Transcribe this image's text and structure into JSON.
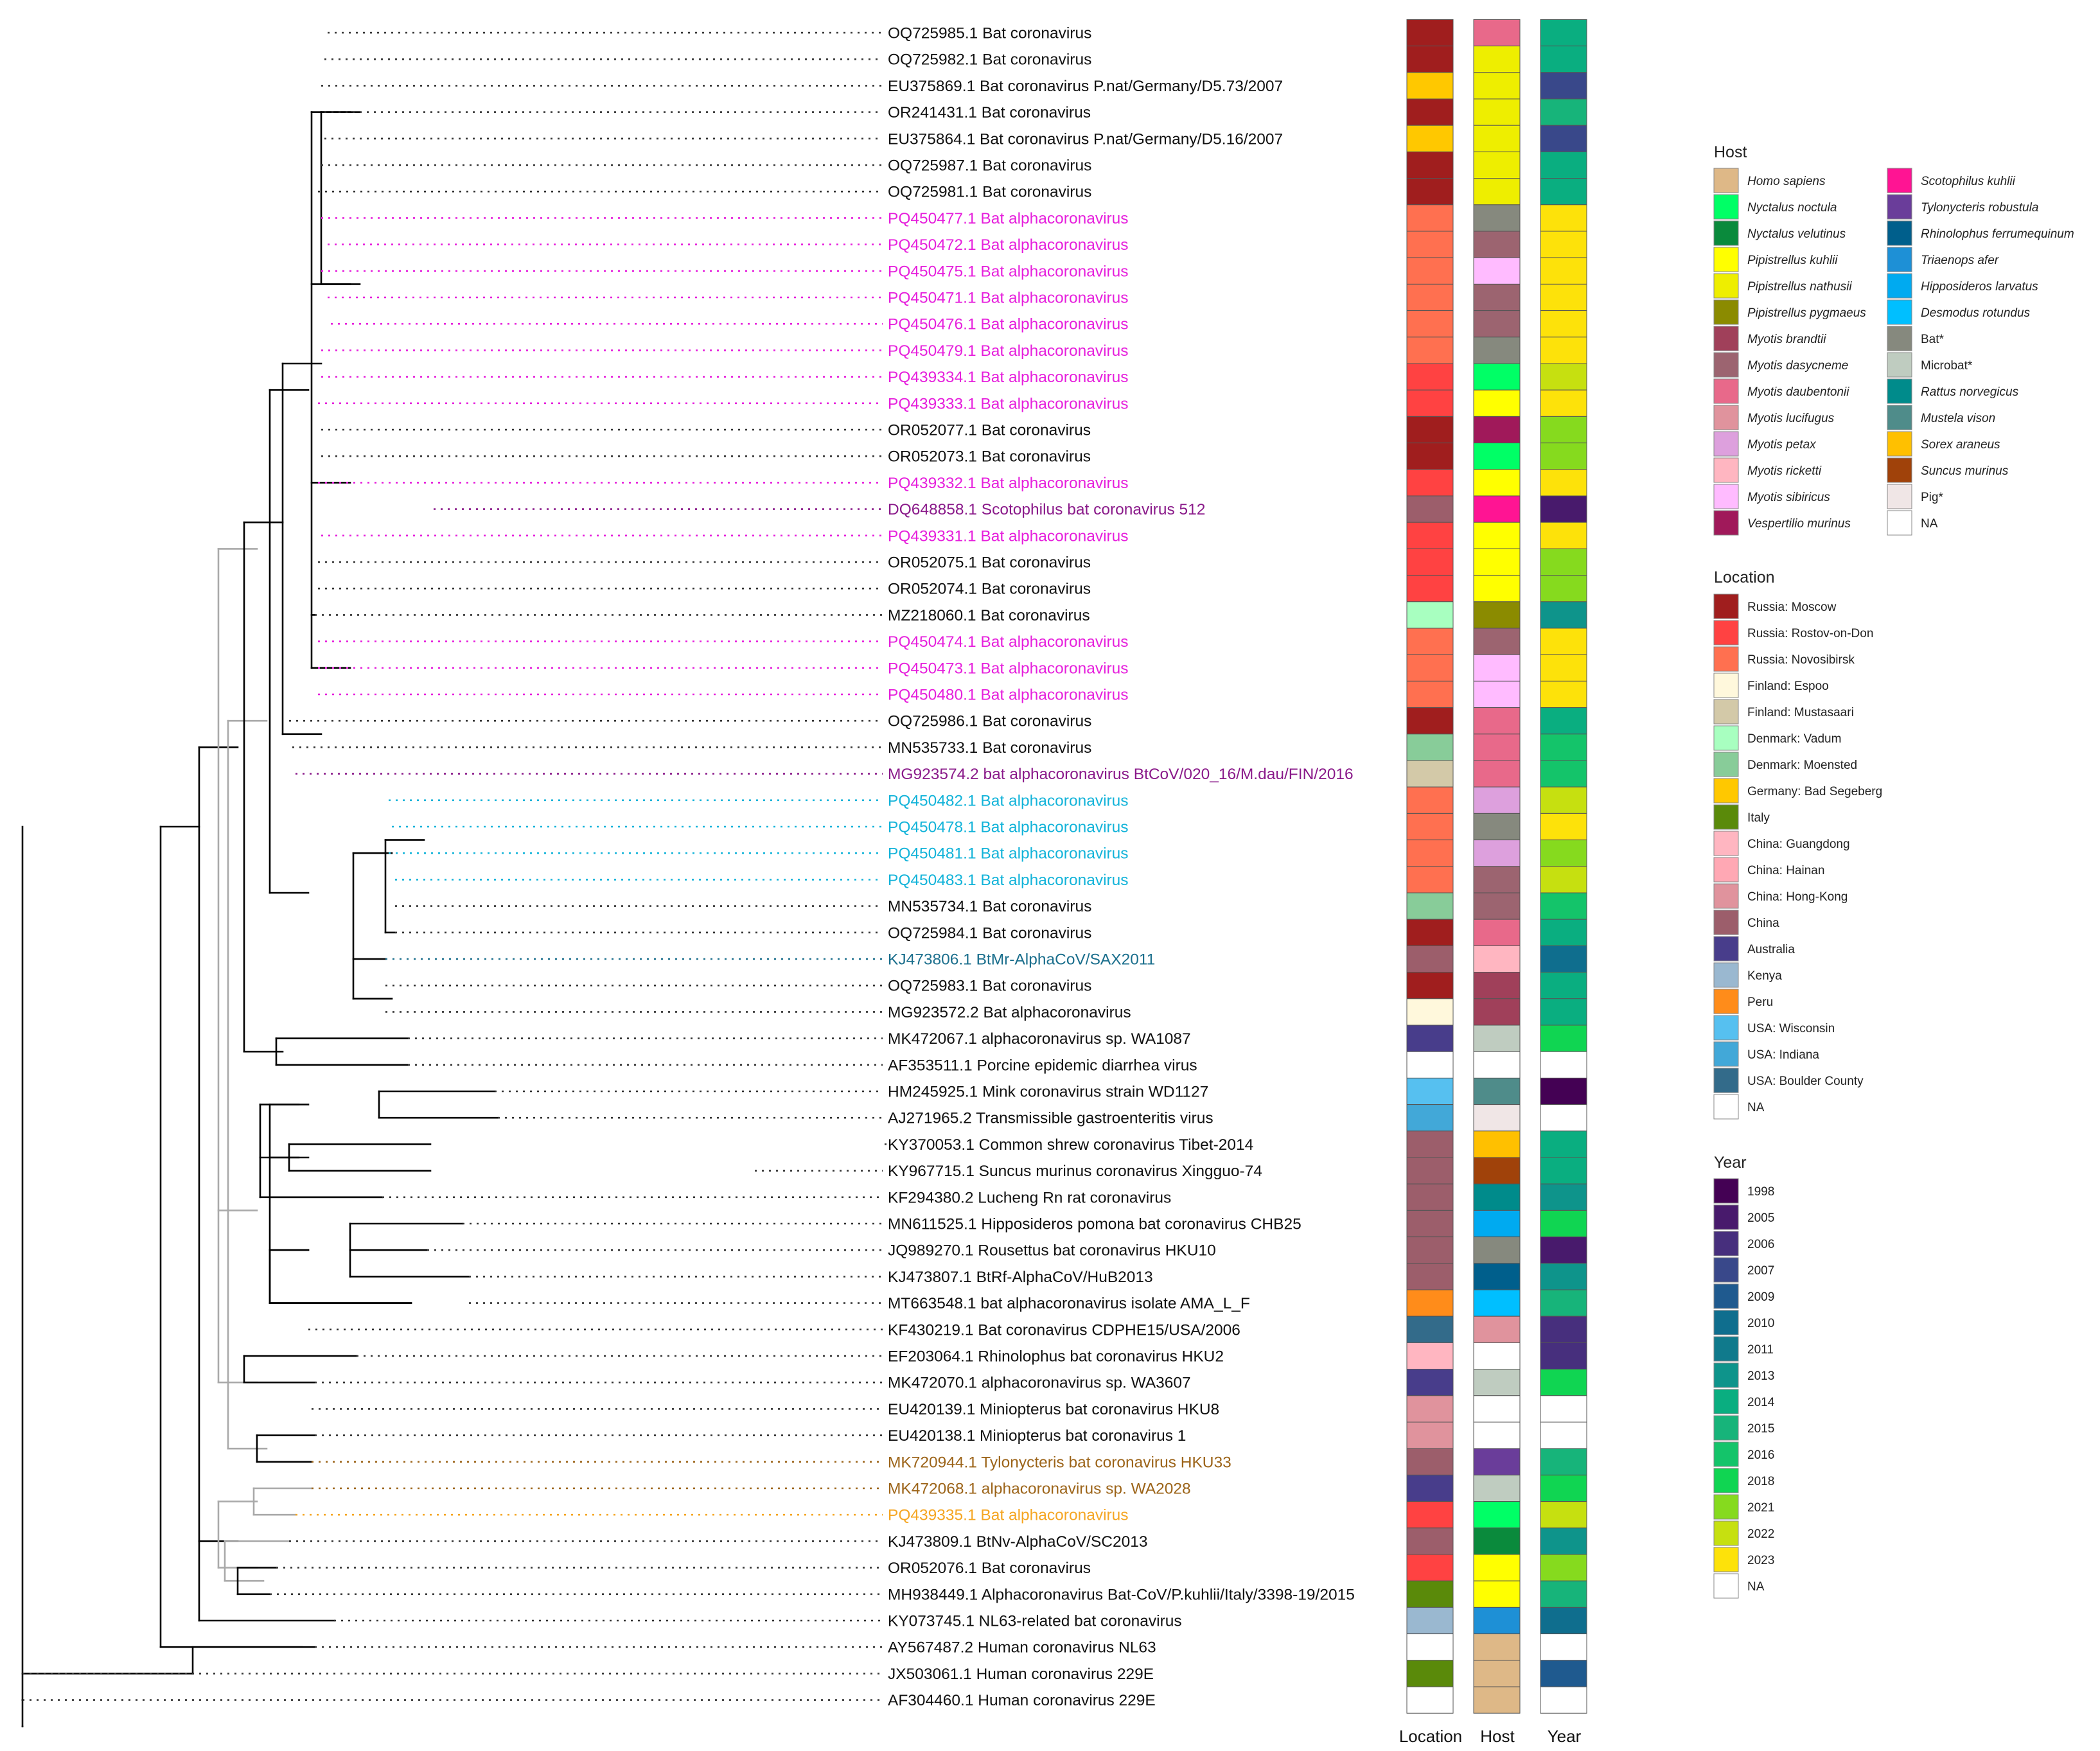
{
  "colors": {
    "tip_default": "#111111",
    "pink": "#E61FDC",
    "cyan": "#12B3D9",
    "purple": "#8A1A8A",
    "teal": "#1A6E8C",
    "brown": "#9C6419",
    "orange": "#F5A623"
  },
  "tips": [
    {
      "label": "OQ725985.1 Bat coronavirus",
      "color": "tip_default",
      "location": "rm",
      "host": "mdau",
      "year": "2014"
    },
    {
      "label": "OQ725982.1 Bat coronavirus",
      "color": "tip_default",
      "location": "rm",
      "host": "pnat",
      "year": "2014"
    },
    {
      "label": "EU375869.1 Bat coronavirus P.nat/Germany/D5.73/2007",
      "color": "tip_default",
      "location": "gbs",
      "host": "pnat",
      "year": "2007"
    },
    {
      "label": "OR241431.1 Bat coronavirus",
      "color": "tip_default",
      "location": "rm",
      "host": "pnat",
      "year": "2015"
    },
    {
      "label": "EU375864.1 Bat coronavirus P.nat/Germany/D5.16/2007",
      "color": "tip_default",
      "location": "gbs",
      "host": "pnat",
      "year": "2007"
    },
    {
      "label": "OQ725987.1 Bat coronavirus",
      "color": "tip_default",
      "location": "rm",
      "host": "pnat",
      "year": "2014"
    },
    {
      "label": "OQ725981.1 Bat coronavirus",
      "color": "tip_default",
      "location": "rm",
      "host": "pnat",
      "year": "2014"
    },
    {
      "label": "PQ450477.1 Bat alphacoronavirus",
      "color": "pink",
      "location": "rn",
      "host": "bat",
      "year": "2023"
    },
    {
      "label": "PQ450472.1 Bat alphacoronavirus",
      "color": "pink",
      "location": "rn",
      "host": "mdas",
      "year": "2023"
    },
    {
      "label": "PQ450475.1 Bat alphacoronavirus",
      "color": "pink",
      "location": "rn",
      "host": "msib",
      "year": "2023"
    },
    {
      "label": "PQ450471.1 Bat alphacoronavirus",
      "color": "pink",
      "location": "rn",
      "host": "mdas",
      "year": "2023"
    },
    {
      "label": "PQ450476.1 Bat alphacoronavirus",
      "color": "pink",
      "location": "rn",
      "host": "mdas",
      "year": "2023"
    },
    {
      "label": "PQ450479.1 Bat alphacoronavirus",
      "color": "pink",
      "location": "rn",
      "host": "bat",
      "year": "2023"
    },
    {
      "label": "PQ439334.1 Bat alphacoronavirus",
      "color": "pink",
      "location": "rr",
      "host": "nnoc",
      "year": "2022"
    },
    {
      "label": "PQ439333.1 Bat alphacoronavirus",
      "color": "pink",
      "location": "rr",
      "host": "pkuh",
      "year": "2023"
    },
    {
      "label": "OR052077.1 Bat coronavirus",
      "color": "tip_default",
      "location": "rm",
      "host": "vmur",
      "year": "2021"
    },
    {
      "label": "OR052073.1 Bat coronavirus",
      "color": "tip_default",
      "location": "rm",
      "host": "nnoc",
      "year": "2021"
    },
    {
      "label": "PQ439332.1 Bat alphacoronavirus",
      "color": "pink",
      "location": "rr",
      "host": "pkuh",
      "year": "2023"
    },
    {
      "label": "DQ648858.1 Scotophilus bat coronavirus 512",
      "color": "purple",
      "location": "chn",
      "host": "skuh",
      "year": "2005"
    },
    {
      "label": "PQ439331.1 Bat alphacoronavirus",
      "color": "pink",
      "location": "rr",
      "host": "pkuh",
      "year": "2023"
    },
    {
      "label": "OR052075.1 Bat coronavirus",
      "color": "tip_default",
      "location": "rr",
      "host": "pkuh",
      "year": "2021"
    },
    {
      "label": "OR052074.1 Bat coronavirus",
      "color": "tip_default",
      "location": "rr",
      "host": "pkuh",
      "year": "2021"
    },
    {
      "label": "MZ218060.1 Bat coronavirus",
      "color": "tip_default",
      "location": "dv",
      "host": "ppyg",
      "year": "2013"
    },
    {
      "label": "PQ450474.1 Bat alphacoronavirus",
      "color": "pink",
      "location": "rn",
      "host": "mdas",
      "year": "2023"
    },
    {
      "label": "PQ450473.1 Bat alphacoronavirus",
      "color": "pink",
      "location": "rn",
      "host": "msib",
      "year": "2023"
    },
    {
      "label": "PQ450480.1 Bat alphacoronavirus",
      "color": "pink",
      "location": "rn",
      "host": "msib",
      "year": "2023"
    },
    {
      "label": "OQ725986.1 Bat coronavirus",
      "color": "tip_default",
      "location": "rm",
      "host": "mdau",
      "year": "2014"
    },
    {
      "label": "MN535733.1 Bat coronavirus",
      "color": "tip_default",
      "location": "dm",
      "host": "mdau",
      "year": "2016"
    },
    {
      "label": "MG923574.2 bat alphacoronavirus BtCoV/020_16/M.dau/FIN/2016",
      "color": "purple",
      "location": "fm",
      "host": "mdau",
      "year": "2016"
    },
    {
      "label": "PQ450482.1 Bat alphacoronavirus",
      "color": "cyan",
      "location": "rn",
      "host": "mpet",
      "year": "2022"
    },
    {
      "label": "PQ450478.1 Bat alphacoronavirus",
      "color": "cyan",
      "location": "rn",
      "host": "bat",
      "year": "2023"
    },
    {
      "label": "PQ450481.1 Bat alphacoronavirus",
      "color": "cyan",
      "location": "rn",
      "host": "mpet",
      "year": "2021"
    },
    {
      "label": "PQ450483.1 Bat alphacoronavirus",
      "color": "cyan",
      "location": "rn",
      "host": "mdas",
      "year": "2022"
    },
    {
      "label": "MN535734.1 Bat coronavirus",
      "color": "tip_default",
      "location": "dm",
      "host": "mdas",
      "year": "2016"
    },
    {
      "label": "OQ725984.1 Bat coronavirus",
      "color": "tip_default",
      "location": "rm",
      "host": "mdau",
      "year": "2014"
    },
    {
      "label": "KJ473806.1 BtMr-AlphaCoV/SAX2011",
      "color": "teal",
      "location": "chn",
      "host": "mric",
      "year": "2010"
    },
    {
      "label": "OQ725983.1 Bat coronavirus",
      "color": "tip_default",
      "location": "rm",
      "host": "mbra",
      "year": "2014"
    },
    {
      "label": "MG923572.2 Bat alphacoronavirus",
      "color": "tip_default",
      "location": "fe",
      "host": "mbra",
      "year": "2014"
    },
    {
      "label": "MK472067.1 alphacoronavirus sp. WA1087",
      "color": "tip_default",
      "location": "aus",
      "host": "mic",
      "year": "2018"
    },
    {
      "label": "AF353511.1 Porcine epidemic diarrhea virus",
      "color": "tip_default",
      "location": "na",
      "host": "na",
      "year": "na"
    },
    {
      "label": "HM245925.1 Mink coronavirus strain WD1127",
      "color": "tip_default",
      "location": "uwi",
      "host": "mvis",
      "year": "1998"
    },
    {
      "label": "AJ271965.2 Transmissible gastroenteritis virus",
      "color": "tip_default",
      "location": "uin",
      "host": "pig",
      "year": "na"
    },
    {
      "label": "KY370053.1 Common shrew coronavirus Tibet-2014",
      "color": "tip_default",
      "location": "chn",
      "host": "sara",
      "year": "2014"
    },
    {
      "label": "KY967715.1 Suncus murinus coronavirus Xingguo-74",
      "color": "tip_default",
      "location": "chn",
      "host": "smur",
      "year": "2014"
    },
    {
      "label": "KF294380.2 Lucheng Rn rat coronavirus",
      "color": "tip_default",
      "location": "chn",
      "host": "rnor",
      "year": "2013"
    },
    {
      "label": "MN611525.1 Hipposideros pomona bat coronavirus CHB25",
      "color": "tip_default",
      "location": "chn",
      "host": "hlar",
      "year": "2018"
    },
    {
      "label": "JQ989270.1 Rousettus bat coronavirus HKU10",
      "color": "tip_default",
      "location": "chn",
      "host": "bat",
      "year": "2005"
    },
    {
      "label": "KJ473807.1 BtRf-AlphaCoV/HuB2013",
      "color": "tip_default",
      "location": "chn",
      "host": "rfer",
      "year": "2013"
    },
    {
      "label": "MT663548.1 bat alphacoronavirus isolate AMA_L_F",
      "color": "tip_default",
      "location": "peru",
      "host": "drot",
      "year": "2015"
    },
    {
      "label": "KF430219.1 Bat coronavirus CDPHE15/USA/2006",
      "color": "tip_default",
      "location": "ubc",
      "host": "mluc",
      "year": "2006"
    },
    {
      "label": "EF203064.1 Rhinolophus bat coronavirus HKU2",
      "color": "tip_default",
      "location": "chgd",
      "host": "na",
      "year": "2006"
    },
    {
      "label": "MK472070.1 alphacoronavirus sp. WA3607",
      "color": "tip_default",
      "location": "aus",
      "host": "mic",
      "year": "2018"
    },
    {
      "label": "EU420139.1 Miniopterus bat coronavirus HKU8",
      "color": "tip_default",
      "location": "chk",
      "host": "na",
      "year": "na"
    },
    {
      "label": "EU420138.1 Miniopterus bat coronavirus 1",
      "color": "tip_default",
      "location": "chk",
      "host": "na",
      "year": "na"
    },
    {
      "label": "MK720944.1 Tylonycteris bat coronavirus HKU33",
      "color": "brown",
      "location": "chn",
      "host": "trob",
      "year": "2015"
    },
    {
      "label": "MK472068.1 alphacoronavirus sp. WA2028",
      "color": "brown",
      "location": "aus",
      "host": "mic",
      "year": "2018"
    },
    {
      "label": "PQ439335.1 Bat alphacoronavirus",
      "color": "orange",
      "location": "rr",
      "host": "nnoc",
      "year": "2022"
    },
    {
      "label": "KJ473809.1 BtNv-AlphaCoV/SC2013",
      "color": "tip_default",
      "location": "chn",
      "host": "nvel",
      "year": "2013"
    },
    {
      "label": "OR052076.1 Bat coronavirus",
      "color": "tip_default",
      "location": "rr",
      "host": "pkuh",
      "year": "2021"
    },
    {
      "label": "MH938449.1 Alphacoronavirus Bat-CoV/P.kuhlii/Italy/3398-19/2015",
      "color": "tip_default",
      "location": "ita",
      "host": "pkuh",
      "year": "2015"
    },
    {
      "label": "KY073745.1 NL63-related bat coronavirus",
      "color": "tip_default",
      "location": "ken",
      "host": "tafe",
      "year": "2010"
    },
    {
      "label": "AY567487.2 Human coronavirus NL63",
      "color": "tip_default",
      "location": "na",
      "host": "hsap",
      "year": "na"
    },
    {
      "label": "JX503061.1 Human coronavirus 229E",
      "color": "tip_default",
      "location": "ita",
      "host": "hsap",
      "year": "2009"
    },
    {
      "label": "AF304460.1 Human coronavirus 229E",
      "color": "tip_default",
      "location": "na",
      "host": "hsap",
      "year": "na"
    }
  ],
  "legend": {
    "host": {
      "title": "Host",
      "col1": [
        {
          "key": "hsap",
          "label": "Homo sapiens",
          "color": "#DEB887",
          "italic": true
        },
        {
          "key": "nnoc",
          "label": "Nyctalus noctula",
          "color": "#00FF66",
          "italic": true
        },
        {
          "key": "nvel",
          "label": "Nyctalus velutinus",
          "color": "#0A8A3C",
          "italic": true
        },
        {
          "key": "pkuh",
          "label": "Pipistrellus kuhlii",
          "color": "#FFFF00",
          "italic": true
        },
        {
          "key": "pnat",
          "label": "Pipistrellus nathusii",
          "color": "#EEEE00",
          "italic": true
        },
        {
          "key": "ppyg",
          "label": "Pipistrellus pygmaeus",
          "color": "#8B8B00",
          "italic": true
        },
        {
          "key": "mbra",
          "label": "Myotis brandtii",
          "color": "#A0405A",
          "italic": true
        },
        {
          "key": "mdas",
          "label": "Myotis dasycneme",
          "color": "#9C6470",
          "italic": true
        },
        {
          "key": "mdau",
          "label": "Myotis daubentonii",
          "color": "#E8698A",
          "italic": true
        },
        {
          "key": "mluc",
          "label": "Myotis lucifugus",
          "color": "#E0939D",
          "italic": true
        },
        {
          "key": "mpet",
          "label": "Myotis petax",
          "color": "#DDA0DD",
          "italic": true
        },
        {
          "key": "mric",
          "label": "Myotis ricketti",
          "color": "#FFB6C1",
          "italic": true
        },
        {
          "key": "msib",
          "label": "Myotis sibiricus",
          "color": "#FFBBFF",
          "italic": true
        },
        {
          "key": "vmur",
          "label": "Vespertilio murinus",
          "color": "#A0195A",
          "italic": true
        }
      ],
      "col2": [
        {
          "key": "skuh",
          "label": "Scotophilus kuhlii",
          "color": "#FF1493",
          "italic": true
        },
        {
          "key": "trob",
          "label": "Tylonycteris robustula",
          "color": "#6A3D9A",
          "italic": true
        },
        {
          "key": "rfer",
          "label": "Rhinolophus ferrumequinum",
          "color": "#005F8C",
          "italic": true
        },
        {
          "key": "tafe",
          "label": "Triaenops afer",
          "color": "#1E90D6",
          "italic": true
        },
        {
          "key": "hlar",
          "label": "Hipposideros larvatus",
          "color": "#00AAF0",
          "italic": true
        },
        {
          "key": "drot",
          "label": "Desmodus rotundus",
          "color": "#00BFFF",
          "italic": true
        },
        {
          "key": "bat",
          "label": "Bat*",
          "color": "#86897E",
          "italic": false
        },
        {
          "key": "mic",
          "label": "Microbat*",
          "color": "#BFCCC0",
          "italic": false
        },
        {
          "key": "rnor",
          "label": "Rattus norvegicus",
          "color": "#008B8B",
          "italic": true
        },
        {
          "key": "mvis",
          "label": "Mustela vison",
          "color": "#4F8C8A",
          "italic": true
        },
        {
          "key": "sara",
          "label": "Sorex araneus",
          "color": "#FFC000",
          "italic": true
        },
        {
          "key": "smur",
          "label": "Suncus murinus",
          "color": "#A0420A",
          "italic": true
        },
        {
          "key": "pig",
          "label": "Pig*",
          "color": "#F0E6E6",
          "italic": false
        },
        {
          "key": "na",
          "label": "NA",
          "color": "#FFFFFF",
          "italic": false
        }
      ]
    },
    "location": {
      "title": "Location",
      "items": [
        {
          "key": "rm",
          "label": "Russia: Moscow",
          "color": "#A01E1E"
        },
        {
          "key": "rr",
          "label": "Russia: Rostov-on-Don",
          "color": "#FF4242"
        },
        {
          "key": "rn",
          "label": "Russia: Novosibirsk",
          "color": "#FF7050"
        },
        {
          "key": "fe",
          "label": "Finland: Espoo",
          "color": "#FFF8DC"
        },
        {
          "key": "fm",
          "label": "Finland: Mustasaari",
          "color": "#D3C9A8"
        },
        {
          "key": "dv",
          "label": "Denmark: Vadum",
          "color": "#A8FFC0"
        },
        {
          "key": "dm",
          "label": "Denmark: Moensted",
          "color": "#88CC99"
        },
        {
          "key": "gbs",
          "label": "Germany: Bad Segeberg",
          "color": "#FFC800"
        },
        {
          "key": "ita",
          "label": "Italy",
          "color": "#5A8A0A"
        },
        {
          "key": "chgd",
          "label": "China: Guangdong",
          "color": "#FFB6C1"
        },
        {
          "key": "chhn",
          "label": "China: Hainan",
          "color": "#FFA8B4"
        },
        {
          "key": "chk",
          "label": "China: Hong-Kong",
          "color": "#E0939D"
        },
        {
          "key": "chn",
          "label": "China",
          "color": "#9C5E6B"
        },
        {
          "key": "aus",
          "label": "Australia",
          "color": "#483D8B"
        },
        {
          "key": "ken",
          "label": "Kenya",
          "color": "#9AB8D0"
        },
        {
          "key": "peru",
          "label": "Peru",
          "color": "#FF8C1A"
        },
        {
          "key": "uwi",
          "label": "USA: Wisconsin",
          "color": "#56C0F0"
        },
        {
          "key": "uin",
          "label": "USA: Indiana",
          "color": "#42A8D8"
        },
        {
          "key": "ubc",
          "label": "USA: Boulder County",
          "color": "#336B8A"
        },
        {
          "key": "na",
          "label": "NA",
          "color": "#FFFFFF"
        }
      ]
    },
    "year": {
      "title": "Year",
      "items": [
        {
          "key": "1998",
          "label": "1998",
          "color": "#440154"
        },
        {
          "key": "2005",
          "label": "2005",
          "color": "#481A6C"
        },
        {
          "key": "2006",
          "label": "2006",
          "color": "#472F7D"
        },
        {
          "key": "2007",
          "label": "2007",
          "color": "#39488A"
        },
        {
          "key": "2009",
          "label": "2009",
          "color": "#1F5A8F"
        },
        {
          "key": "2010",
          "label": "2010",
          "color": "#0F6E8E"
        },
        {
          "key": "2011",
          "label": "2011",
          "color": "#107A8C"
        },
        {
          "key": "2013",
          "label": "2013",
          "color": "#0E948B"
        },
        {
          "key": "2014",
          "label": "2014",
          "color": "#0AAE80"
        },
        {
          "key": "2015",
          "label": "2015",
          "color": "#17B47A"
        },
        {
          "key": "2016",
          "label": "2016",
          "color": "#14C46A"
        },
        {
          "key": "2018",
          "label": "2018",
          "color": "#10D552"
        },
        {
          "key": "2021",
          "label": "2021",
          "color": "#86DA1E"
        },
        {
          "key": "2022",
          "label": "2022",
          "color": "#C6E010"
        },
        {
          "key": "2023",
          "label": "2023",
          "color": "#FDE20A"
        },
        {
          "key": "na",
          "label": "NA",
          "color": "#FFFFFF"
        }
      ]
    }
  },
  "strip_labels": {
    "location": "Location",
    "host": "Host",
    "year": "Year"
  }
}
